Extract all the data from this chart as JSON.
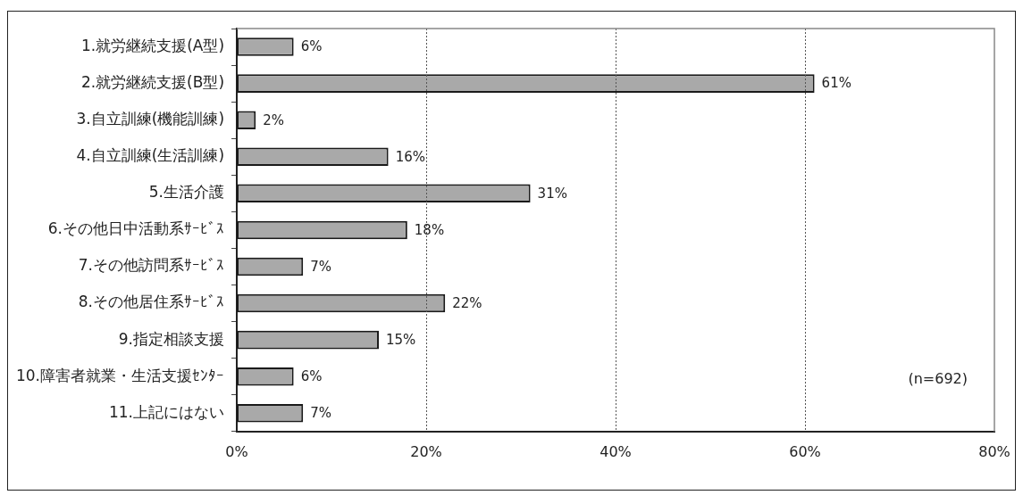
{
  "chart_data": {
    "type": "bar",
    "orientation": "horizontal",
    "categories": [
      "1.就労継続支援(A型)",
      "2.就労継続支援(B型)",
      "3.自立訓練(機能訓練)",
      "4.自立訓練(生活訓練)",
      "5.生活介護",
      "6.その他日中活動系ｻｰﾋﾞｽ",
      "7.その他訪問系ｻｰﾋﾞｽ",
      "8.その他居住系ｻｰﾋﾞｽ",
      "9.指定相談支援",
      "10.障害者就業・生活支援ｾﾝﾀｰ",
      "11.上記にはない"
    ],
    "values": [
      6,
      61,
      2,
      16,
      31,
      18,
      7,
      22,
      15,
      6,
      7
    ],
    "value_labels": [
      "6%",
      "61%",
      "2%",
      "16%",
      "31%",
      "18%",
      "7%",
      "22%",
      "15%",
      "6%",
      "7%"
    ],
    "color": "#a9a9a9",
    "xlim": [
      0,
      80
    ],
    "xticks": [
      {
        "value": 0,
        "label": "0%"
      },
      {
        "value": 20,
        "label": "20%"
      },
      {
        "value": 40,
        "label": "40%"
      },
      {
        "value": 60,
        "label": "60%"
      },
      {
        "value": 80,
        "label": "80%"
      }
    ],
    "grid": "x",
    "legend": false,
    "annotations": [
      "(n=692)"
    ]
  }
}
